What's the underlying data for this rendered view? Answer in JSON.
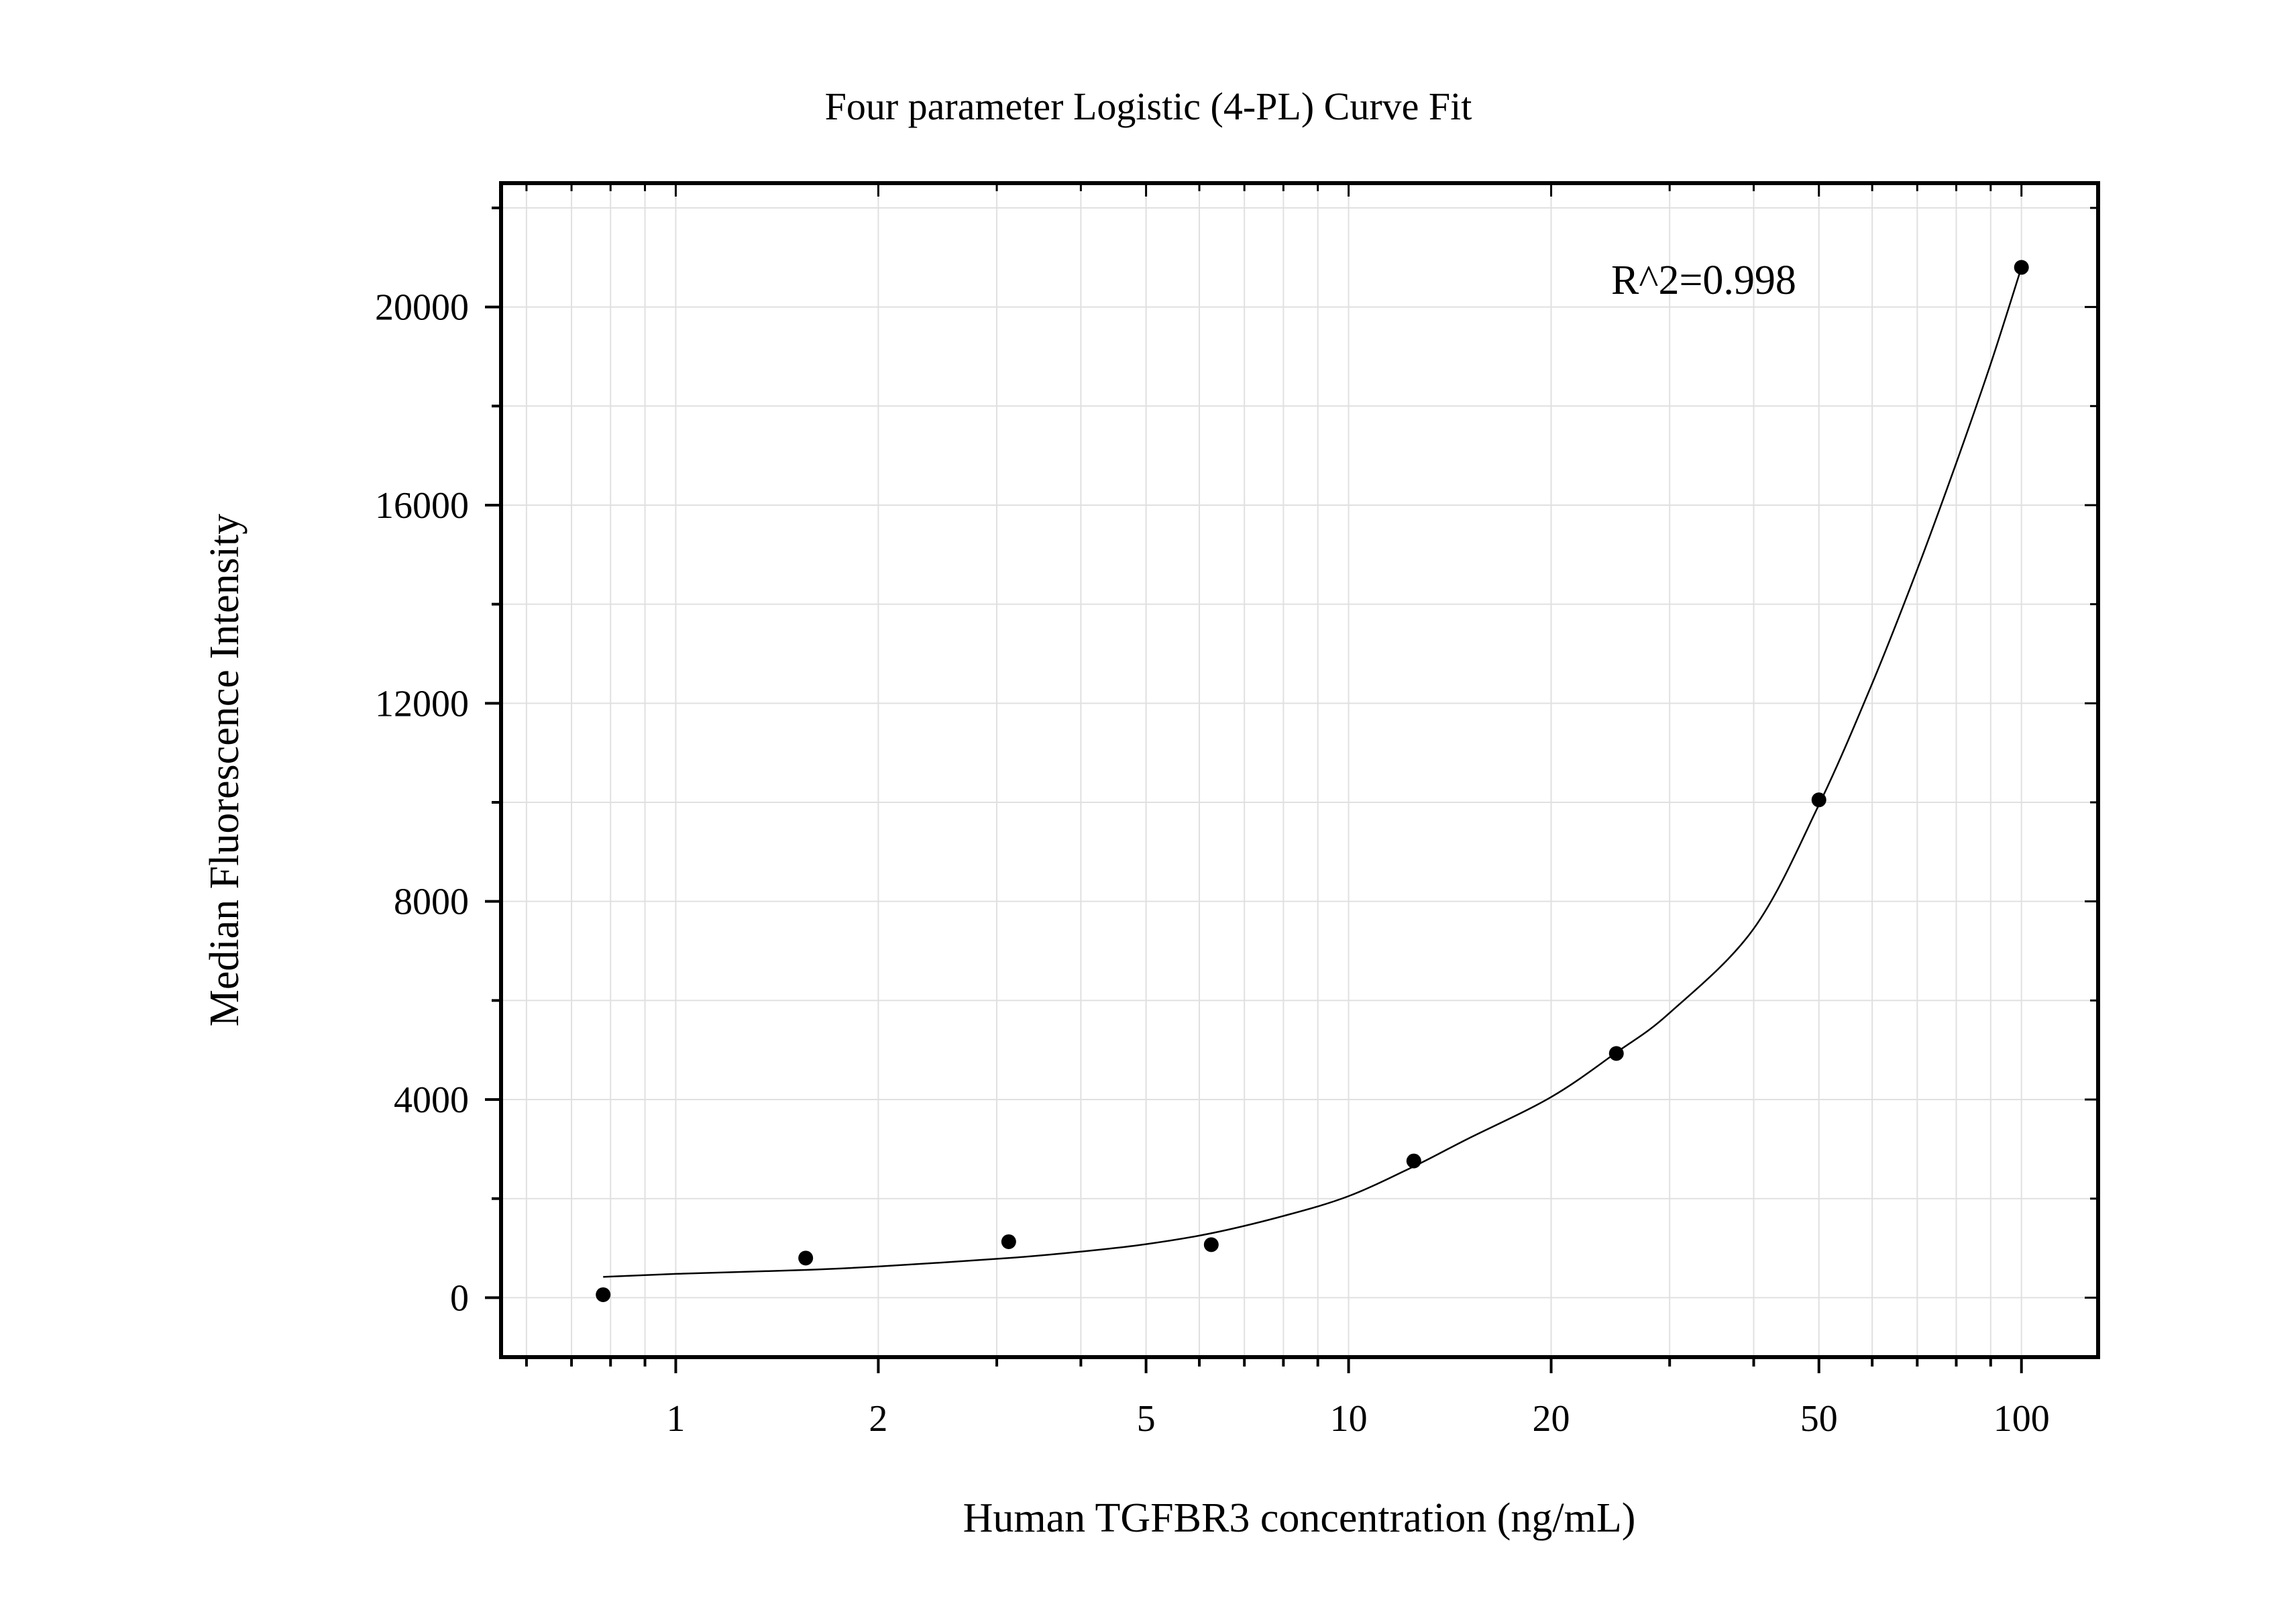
{
  "chart_data": {
    "type": "scatter",
    "title": "Four parameter Logistic (4-PL) Curve Fit",
    "xlabel": "Human TGFBR3 concentration (ng/mL)",
    "ylabel": "Median Fluorescence Intensity",
    "xscale": "log",
    "xlim": [
      0.55,
      130
    ],
    "ylim": [
      -1200,
      22500
    ],
    "x_ticks": [
      1,
      2,
      5,
      10,
      20,
      50,
      100
    ],
    "x_tick_labels": [
      "1",
      "2",
      "5",
      "10",
      "20",
      "50",
      "100"
    ],
    "y_ticks": [
      0,
      4000,
      8000,
      12000,
      16000,
      20000
    ],
    "y_tick_labels": [
      "0",
      "4000",
      "8000",
      "12000",
      "16000",
      "20000"
    ],
    "grid": true,
    "annotation": "R^2=0.998",
    "series": [
      {
        "type": "scatter",
        "x": [
          0.78,
          1.56,
          3.125,
          6.25,
          12.5,
          25,
          50,
          100
        ],
        "y": [
          60,
          800,
          1130,
          1070,
          2760,
          4930,
          10050,
          20800
        ]
      },
      {
        "type": "line",
        "x": [
          0.78,
          1,
          1.56,
          2,
          3.125,
          4,
          5,
          6.25,
          8,
          10,
          12.5,
          15,
          20,
          25,
          30,
          40,
          50,
          60,
          70,
          80,
          90,
          100
        ],
        "y": [
          420,
          480,
          560,
          630,
          800,
          930,
          1080,
          1300,
          1650,
          2050,
          2650,
          3200,
          4050,
          4950,
          5750,
          7450,
          9950,
          12400,
          14700,
          16850,
          18850,
          20800
        ]
      }
    ],
    "colors": {
      "points": "#000000",
      "curve": "#000000",
      "grid": "#e0e0e0",
      "frame": "#000000"
    }
  }
}
